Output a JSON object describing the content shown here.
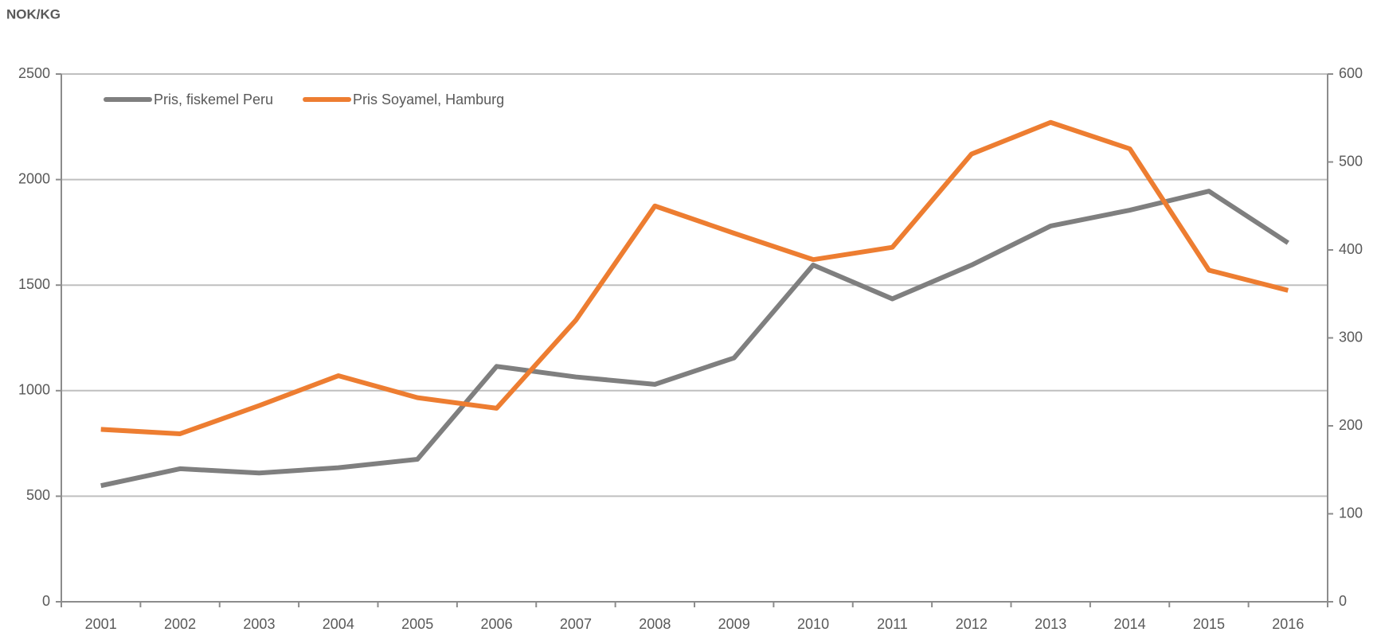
{
  "chart_data": {
    "type": "line",
    "y_label": "NOK/KG",
    "categories": [
      "2001",
      "2002",
      "2003",
      "2004",
      "2005",
      "2006",
      "2007",
      "2008",
      "2009",
      "2010",
      "2011",
      "2012",
      "2013",
      "2014",
      "2015",
      "2016"
    ],
    "series": [
      {
        "name": "Pris, fiskemel Peru",
        "color": "#7f7f7f",
        "values": [
          550,
          630,
          610,
          635,
          675,
          1115,
          1065,
          1030,
          1155,
          1595,
          1435,
          1595,
          1780,
          1855,
          1945,
          1700
        ]
      },
      {
        "name": "Pris Soyamel, Hamburg",
        "color": "#ed7d31",
        "axis": "y2",
        "values": [
          196,
          191,
          223,
          257,
          232,
          220,
          320,
          450,
          419,
          389,
          403,
          509,
          545,
          515,
          377,
          354
        ]
      }
    ],
    "ylim": [
      0,
      2500
    ],
    "yticks": [
      0,
      500,
      1000,
      1500,
      2000,
      2500
    ],
    "y2lim": [
      0,
      600
    ],
    "y2ticks": [
      0,
      100,
      200,
      300,
      400,
      500,
      600
    ],
    "grid": true,
    "legend": "top-left"
  }
}
